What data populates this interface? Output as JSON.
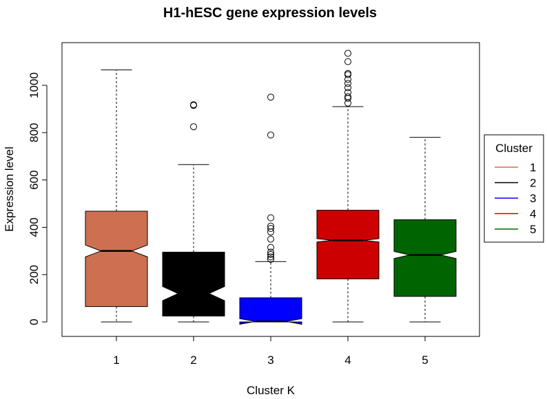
{
  "chart_data": {
    "type": "boxplot",
    "title": "H1-hESC gene expression levels",
    "xlabel": "Cluster K",
    "ylabel": "Expression level",
    "categories": [
      "1",
      "2",
      "3",
      "4",
      "5"
    ],
    "ylim": [
      -60,
      1130
    ],
    "yticks": [
      0,
      200,
      400,
      600,
      800,
      1000
    ],
    "notched": true,
    "boxes": [
      {
        "category": "1",
        "color": "#CD6F51",
        "min": 0,
        "q1": 65,
        "median": 300,
        "q3": 468,
        "max": 1065,
        "notch_low": 275,
        "notch_high": 325,
        "outliers": []
      },
      {
        "category": "2",
        "color": "#000000",
        "min": 0,
        "q1": 25,
        "median": 120,
        "q3": 295,
        "max": 665,
        "notch_low": 90,
        "notch_high": 150,
        "outliers": [
          825,
          915,
          918
        ]
      },
      {
        "category": "3",
        "color": "#0000FF",
        "min": 0,
        "q1": 0,
        "median": 2,
        "q3": 102,
        "max": 255,
        "notch_low": -10,
        "notch_high": 14,
        "outliers": [
          265,
          275,
          285,
          295,
          315,
          350,
          380,
          395,
          405,
          440,
          790,
          950
        ]
      },
      {
        "category": "4",
        "color": "#CC0000",
        "min": 0,
        "q1": 182,
        "median": 345,
        "q3": 472,
        "max": 910,
        "notch_low": 338,
        "notch_high": 352,
        "outliers": [
          925,
          945,
          952,
          970,
          990,
          1008,
          1025,
          1045,
          1050,
          1100,
          1135
        ]
      },
      {
        "category": "5",
        "color": "#006400",
        "min": 0,
        "q1": 108,
        "median": 283,
        "q3": 432,
        "max": 780,
        "notch_low": 268,
        "notch_high": 298,
        "outliers": []
      }
    ],
    "legend": {
      "title": "Cluster",
      "placement": "right",
      "entries": [
        {
          "label": "1",
          "color": "#CD6F51"
        },
        {
          "label": "2",
          "color": "#000000"
        },
        {
          "label": "3",
          "color": "#0000FF"
        },
        {
          "label": "4",
          "color": "#CC0000"
        },
        {
          "label": "5",
          "color": "#006400"
        }
      ]
    },
    "grid": false
  }
}
